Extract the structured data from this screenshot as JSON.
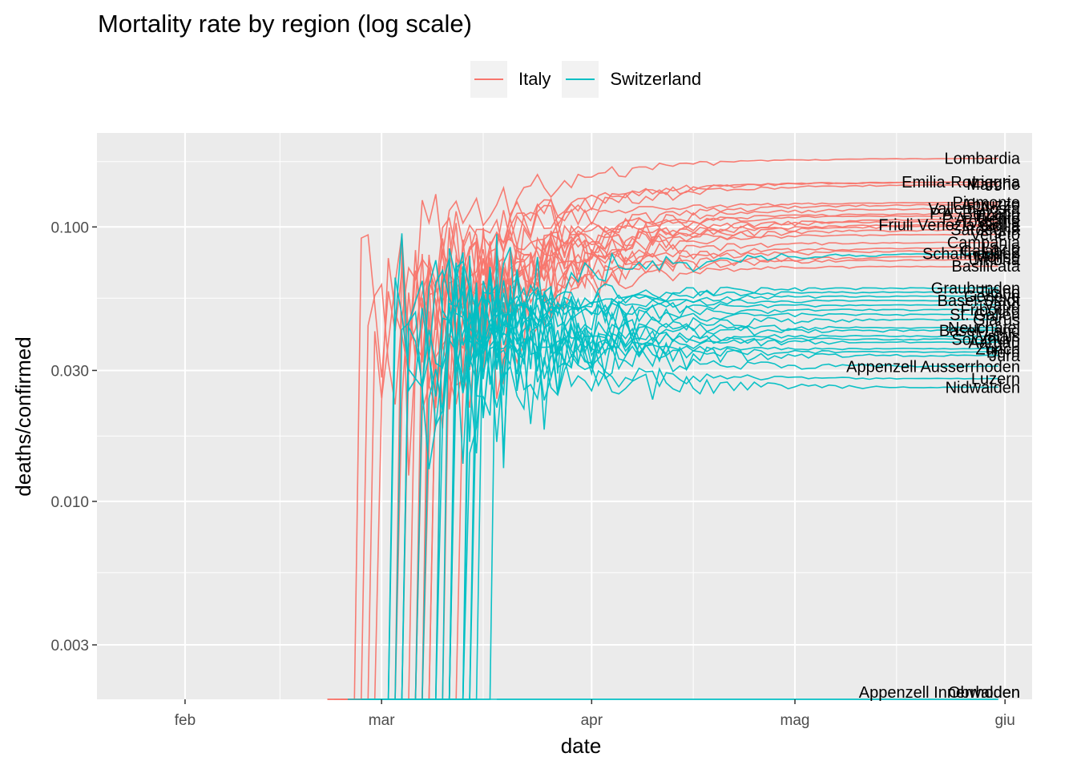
{
  "chart_data": {
    "type": "line",
    "title": "Mortality rate by region (log scale)",
    "xlabel": "date",
    "ylabel": "deaths/confirmed",
    "y_scale": "log10",
    "x_ticks": [
      "feb",
      "mar",
      "apr",
      "mag",
      "giu"
    ],
    "y_ticks": [
      "0.003",
      "0.010",
      "0.030",
      "0.100"
    ],
    "y_tick_values": [
      0.003,
      0.01,
      0.03,
      0.1
    ],
    "ylim": [
      0.0019,
      0.22
    ],
    "xlim": [
      "2020-01-19",
      "2020-06-05"
    ],
    "legend": {
      "position": "top",
      "entries": [
        {
          "name": "Italy",
          "color": "#F8766D"
        },
        {
          "name": "Switzerland",
          "color": "#00BFC4"
        }
      ]
    },
    "colors": {
      "Italy": "#F8766D",
      "Switzerland": "#00BFC4"
    },
    "series": [
      {
        "name": "Lombardia",
        "group": "Italy",
        "start": "2020-02-24",
        "end_value": 0.178
      },
      {
        "name": "Liguria",
        "group": "Italy",
        "start": "2020-02-25",
        "end_value": 0.146
      },
      {
        "name": "Emilia-Romagna",
        "group": "Italy",
        "start": "2020-02-24",
        "end_value": 0.146
      },
      {
        "name": "Marche",
        "group": "Italy",
        "start": "2020-02-26",
        "end_value": 0.143
      },
      {
        "name": "Piemonte",
        "group": "Italy",
        "start": "2020-02-26",
        "end_value": 0.123
      },
      {
        "name": "Abruzzo",
        "group": "Italy",
        "start": "2020-02-29",
        "end_value": 0.121
      },
      {
        "name": "Valle d'Aosta",
        "group": "Italy",
        "start": "2020-03-05",
        "end_value": 0.117
      },
      {
        "name": "P.A. Bolzano",
        "group": "Italy",
        "start": "2020-03-04",
        "end_value": 0.112
      },
      {
        "name": "Puglia",
        "group": "Italy",
        "start": "2020-02-28",
        "end_value": 0.11
      },
      {
        "name": "P.A. Trento",
        "group": "Italy",
        "start": "2020-03-04",
        "end_value": 0.107
      },
      {
        "name": "Toscana",
        "group": "Italy",
        "start": "2020-02-28",
        "end_value": 0.105
      },
      {
        "name": "Friuli Venezia Giulia",
        "group": "Italy",
        "start": "2020-03-01",
        "end_value": 0.102
      },
      {
        "name": "Sicilia",
        "group": "Italy",
        "start": "2020-03-03",
        "end_value": 0.101
      },
      {
        "name": "Sardegna",
        "group": "Italy",
        "start": "2020-03-05",
        "end_value": 0.098
      },
      {
        "name": "Veneto",
        "group": "Italy",
        "start": "2020-02-24",
        "end_value": 0.094
      },
      {
        "name": "Campania",
        "group": "Italy",
        "start": "2020-02-28",
        "end_value": 0.088
      },
      {
        "name": "Lazio",
        "group": "Italy",
        "start": "2020-03-01",
        "end_value": 0.084
      },
      {
        "name": "Calabria",
        "group": "Italy",
        "start": "2020-03-06",
        "end_value": 0.082
      },
      {
        "name": "Molise",
        "group": "Italy",
        "start": "2020-03-03",
        "end_value": 0.078
      },
      {
        "name": "Umbria",
        "group": "Italy",
        "start": "2020-03-03",
        "end_value": 0.076
      },
      {
        "name": "Basilicata",
        "group": "Italy",
        "start": "2020-03-04",
        "end_value": 0.072
      },
      {
        "name": "Schaffhausen",
        "group": "Switzerland",
        "start": "2020-03-10",
        "end_value": 0.08
      },
      {
        "name": "Graubunden",
        "group": "Switzerland",
        "start": "2020-03-03",
        "end_value": 0.06
      },
      {
        "name": "Ticino",
        "group": "Switzerland",
        "start": "2020-02-27",
        "end_value": 0.058
      },
      {
        "name": "Genève",
        "group": "Switzerland",
        "start": "2020-03-01",
        "end_value": 0.056
      },
      {
        "name": "Basel-Stadt",
        "group": "Switzerland",
        "start": "2020-03-01",
        "end_value": 0.054
      },
      {
        "name": "Vaud",
        "group": "Switzerland",
        "start": "2020-03-03",
        "end_value": 0.052
      },
      {
        "name": "Fribourg",
        "group": "Switzerland",
        "start": "2020-03-03",
        "end_value": 0.05
      },
      {
        "name": "St. Gallen",
        "group": "Switzerland",
        "start": "2020-03-08",
        "end_value": 0.048
      },
      {
        "name": "Glarus",
        "group": "Switzerland",
        "start": "2020-03-09",
        "end_value": 0.046
      },
      {
        "name": "Neuchâtel",
        "group": "Switzerland",
        "start": "2020-03-05",
        "end_value": 0.043
      },
      {
        "name": "Basel-Land",
        "group": "Switzerland",
        "start": "2020-03-05",
        "end_value": 0.042
      },
      {
        "name": "Valais",
        "group": "Switzerland",
        "start": "2020-03-05",
        "end_value": 0.04
      },
      {
        "name": "Solothurn",
        "group": "Switzerland",
        "start": "2020-03-07",
        "end_value": 0.039
      },
      {
        "name": "Aargau",
        "group": "Switzerland",
        "start": "2020-03-05",
        "end_value": 0.038
      },
      {
        "name": "Zürich",
        "group": "Switzerland",
        "start": "2020-02-29",
        "end_value": 0.036
      },
      {
        "name": "Bern",
        "group": "Switzerland",
        "start": "2020-03-03",
        "end_value": 0.035
      },
      {
        "name": "Jura",
        "group": "Switzerland",
        "start": "2020-03-08",
        "end_value": 0.034
      },
      {
        "name": "Appenzell Ausserrhoden",
        "group": "Switzerland",
        "start": "2020-03-10",
        "end_value": 0.031
      },
      {
        "name": "Luzern",
        "group": "Switzerland",
        "start": "2020-03-06",
        "end_value": 0.028
      },
      {
        "name": "Nidwalden",
        "group": "Switzerland",
        "start": "2020-03-12",
        "end_value": 0.026
      },
      {
        "name": "Appenzell Innerrhoden",
        "group": "Switzerland",
        "start": "2020-03-20",
        "end_value": 0.0019
      },
      {
        "name": "Obwalden",
        "group": "Switzerland",
        "start": "2020-03-15",
        "end_value": 0.0019
      }
    ]
  }
}
